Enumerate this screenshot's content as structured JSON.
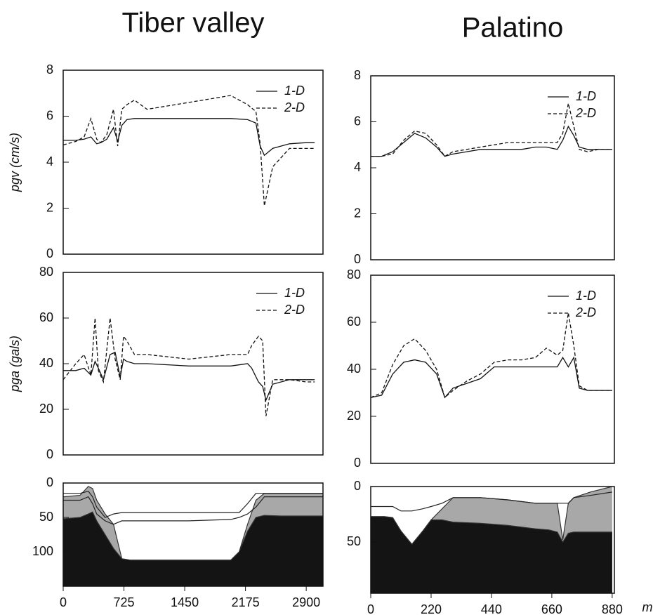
{
  "chart_data": [
    {
      "type": "line",
      "title": "Tiber valley",
      "ylabel": "pgv (cm/s)",
      "legend": "upper right",
      "xlim": [
        0,
        3100
      ],
      "ylim": [
        0,
        8
      ],
      "yticks": [
        0,
        2,
        4,
        6,
        8
      ],
      "x": [
        0,
        150,
        250,
        330,
        400,
        450,
        520,
        600,
        650,
        700,
        760,
        850,
        1000,
        1500,
        2000,
        2200,
        2300,
        2350,
        2400,
        2500,
        2700,
        2900,
        3000
      ],
      "series": [
        {
          "name": "1-D",
          "color": "#111111",
          "dash": false,
          "values": [
            4.95,
            4.95,
            5.0,
            5.1,
            4.8,
            4.85,
            5.0,
            5.5,
            4.9,
            5.6,
            5.85,
            5.9,
            5.9,
            5.9,
            5.9,
            5.85,
            5.7,
            4.7,
            4.3,
            4.6,
            4.8,
            4.85,
            4.85
          ]
        },
        {
          "name": "2-D",
          "color": "#111111",
          "dash": true,
          "values": [
            4.75,
            4.9,
            5.1,
            5.9,
            5.0,
            4.85,
            5.2,
            6.3,
            4.7,
            6.3,
            6.5,
            6.7,
            6.3,
            6.6,
            6.9,
            6.5,
            6.2,
            4.8,
            2.1,
            3.8,
            4.6,
            4.6,
            4.6
          ]
        }
      ]
    },
    {
      "type": "line",
      "title": "Palatino",
      "legend": "upper right",
      "xlim": [
        0,
        888
      ],
      "ylim": [
        0,
        8
      ],
      "yticks": [
        0,
        2,
        4,
        6,
        8
      ],
      "x": [
        0,
        40,
        80,
        120,
        160,
        200,
        240,
        270,
        300,
        350,
        400,
        450,
        500,
        550,
        600,
        640,
        680,
        700,
        720,
        740,
        760,
        790,
        830,
        880
      ],
      "series": [
        {
          "name": "1-D",
          "color": "#111111",
          "dash": false,
          "values": [
            4.5,
            4.5,
            4.7,
            5.1,
            5.5,
            5.3,
            4.9,
            4.5,
            4.6,
            4.7,
            4.8,
            4.8,
            4.8,
            4.8,
            4.9,
            4.9,
            4.8,
            5.2,
            5.8,
            5.4,
            4.9,
            4.8,
            4.8,
            4.8
          ]
        },
        {
          "name": "2-D",
          "color": "#111111",
          "dash": true,
          "values": [
            4.5,
            4.5,
            4.6,
            5.2,
            5.6,
            5.5,
            5.0,
            4.5,
            4.7,
            4.8,
            4.9,
            5.0,
            5.1,
            5.1,
            5.1,
            5.1,
            5.1,
            5.5,
            6.8,
            5.8,
            4.8,
            4.7,
            4.8,
            4.8
          ]
        }
      ]
    },
    {
      "type": "line",
      "ylabel": "pga (gals)",
      "legend": "upper right",
      "xlim": [
        0,
        3100
      ],
      "ylim": [
        0,
        80
      ],
      "yticks": [
        0,
        20,
        40,
        60,
        80
      ],
      "x": [
        0,
        150,
        250,
        330,
        380,
        420,
        480,
        560,
        620,
        680,
        720,
        760,
        850,
        1000,
        1500,
        2000,
        2200,
        2250,
        2330,
        2380,
        2420,
        2500,
        2700,
        2900,
        3000
      ],
      "series": [
        {
          "name": "1-D",
          "color": "#111111",
          "dash": false,
          "values": [
            37,
            37,
            38,
            35,
            41,
            38,
            33,
            44,
            45,
            34,
            42,
            41,
            40,
            40,
            39,
            39,
            40,
            38,
            32,
            30,
            24,
            31,
            33,
            33,
            33
          ]
        },
        {
          "name": "2-D",
          "color": "#111111",
          "dash": true,
          "values": [
            33,
            40,
            44,
            35,
            60,
            37,
            32,
            60,
            42,
            33,
            52,
            50,
            44,
            44,
            42,
            44,
            44,
            48,
            52,
            50,
            17,
            33,
            33,
            32,
            32
          ]
        }
      ]
    },
    {
      "type": "line",
      "legend": "upper right",
      "xlim": [
        0,
        888
      ],
      "ylim": [
        0,
        80
      ],
      "yticks": [
        0,
        20,
        40,
        60,
        80
      ],
      "x": [
        0,
        40,
        80,
        120,
        160,
        200,
        240,
        270,
        300,
        350,
        400,
        450,
        500,
        550,
        600,
        640,
        680,
        700,
        720,
        740,
        760,
        790,
        830,
        880
      ],
      "series": [
        {
          "name": "1-D",
          "color": "#111111",
          "dash": false,
          "values": [
            28,
            29,
            38,
            43,
            44,
            43,
            38,
            28,
            32,
            34,
            36,
            41,
            41,
            41,
            41,
            41,
            41,
            45,
            41,
            45,
            32,
            31,
            31,
            31
          ]
        },
        {
          "name": "2-D",
          "color": "#111111",
          "dash": true,
          "values": [
            28,
            30,
            42,
            50,
            53,
            48,
            40,
            28,
            31,
            35,
            38,
            43,
            44,
            44,
            45,
            49,
            46,
            48,
            64,
            50,
            33,
            31,
            31,
            31
          ]
        }
      ]
    },
    {
      "type": "section",
      "xlim": [
        0,
        3100
      ],
      "ylim": [
        150,
        0
      ],
      "yticks": [
        0,
        50,
        100
      ],
      "xticks": [
        0,
        725,
        1450,
        2175,
        2900
      ],
      "x": [
        0,
        200,
        300,
        350,
        400,
        500,
        600,
        700,
        800,
        1000,
        1200,
        1500,
        2000,
        2100,
        2200,
        2300,
        2400,
        2600,
        2900,
        3100
      ],
      "series": [
        {
          "color": "#a8a8a8",
          "filled": true,
          "values": [
            20,
            18,
            5,
            8,
            25,
            45,
            60,
            110,
            112,
            112,
            112,
            112,
            112,
            100,
            60,
            25,
            15,
            15,
            15,
            15
          ]
        },
        {
          "color": "#141414",
          "filled": true,
          "values": [
            52,
            50,
            45,
            42,
            55,
            75,
            95,
            110,
            112,
            112,
            112,
            112,
            112,
            100,
            70,
            50,
            47,
            48,
            48,
            48
          ]
        },
        {
          "color": "#222222",
          "filled": false,
          "values": [
            15,
            15,
            12,
            20,
            35,
            50,
            45,
            43,
            43,
            43,
            43,
            43,
            43,
            43,
            30,
            15,
            15,
            15,
            15,
            15
          ]
        },
        {
          "color": "#222222",
          "filled": false,
          "values": [
            25,
            25,
            20,
            30,
            45,
            55,
            60,
            55,
            55,
            55,
            55,
            55,
            53,
            50,
            45,
            35,
            20,
            20,
            20,
            20
          ]
        }
      ]
    },
    {
      "type": "section",
      "xlabel": "m",
      "xlim": [
        0,
        888
      ],
      "ylim": [
        96,
        0
      ],
      "yticks": [
        0,
        50
      ],
      "xticks": [
        0,
        220,
        440,
        660,
        880
      ],
      "x": [
        0,
        50,
        80,
        110,
        150,
        190,
        220,
        260,
        300,
        400,
        500,
        600,
        650,
        680,
        700,
        720,
        740,
        800,
        880
      ],
      "series": [
        {
          "color": "#a8a8a8",
          "filled": true,
          "values": [
            27,
            27,
            28,
            40,
            52,
            40,
            30,
            20,
            10,
            10,
            12,
            15,
            15,
            15,
            48,
            15,
            10,
            5,
            0
          ]
        },
        {
          "color": "#141414",
          "filled": true,
          "values": [
            27,
            27,
            28,
            40,
            52,
            40,
            30,
            30,
            32,
            33,
            35,
            38,
            39,
            41,
            50,
            42,
            41,
            41,
            41
          ]
        },
        {
          "color": "#222222",
          "filled": false,
          "values": [
            18,
            18,
            18,
            22,
            22,
            20,
            18,
            15,
            10,
            10,
            12,
            15,
            15,
            15,
            15,
            15,
            10,
            8,
            5
          ]
        }
      ]
    }
  ]
}
